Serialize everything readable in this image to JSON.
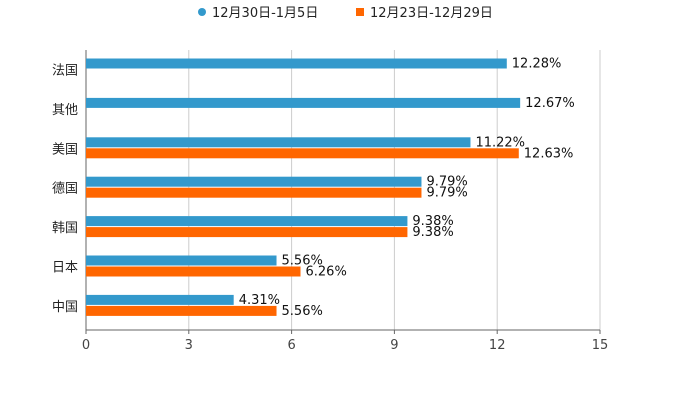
{
  "colors": {
    "series1": "#3399cc",
    "series2": "#ff6600",
    "grid": "#cccccc",
    "axis": "#666666"
  },
  "chart_data": {
    "type": "bar",
    "orientation": "horizontal",
    "title": "",
    "xlabel": "",
    "ylabel": "",
    "xlim": [
      0,
      15
    ],
    "xticks": [
      "0",
      "3",
      "6",
      "9",
      "12",
      "15"
    ],
    "grid": true,
    "legend_position": "top",
    "categories": [
      "法国",
      "其他",
      "美国",
      "德国",
      "韩国",
      "日本",
      "中国"
    ],
    "series": [
      {
        "name": "12月30日-1月5日",
        "values": [
          12.28,
          12.67,
          11.22,
          9.79,
          9.38,
          5.56,
          4.31
        ],
        "labels": [
          "12.28%",
          "12.67%",
          "11.22%",
          "9.79%",
          "9.38%",
          "5.56%",
          "4.31%"
        ]
      },
      {
        "name": "12月23日-12月29日",
        "values": [
          null,
          null,
          12.63,
          9.79,
          9.38,
          6.26,
          5.56
        ],
        "labels": [
          null,
          null,
          "12.63%",
          "9.79%",
          "9.38%",
          "6.26%",
          "5.56%"
        ]
      }
    ]
  }
}
